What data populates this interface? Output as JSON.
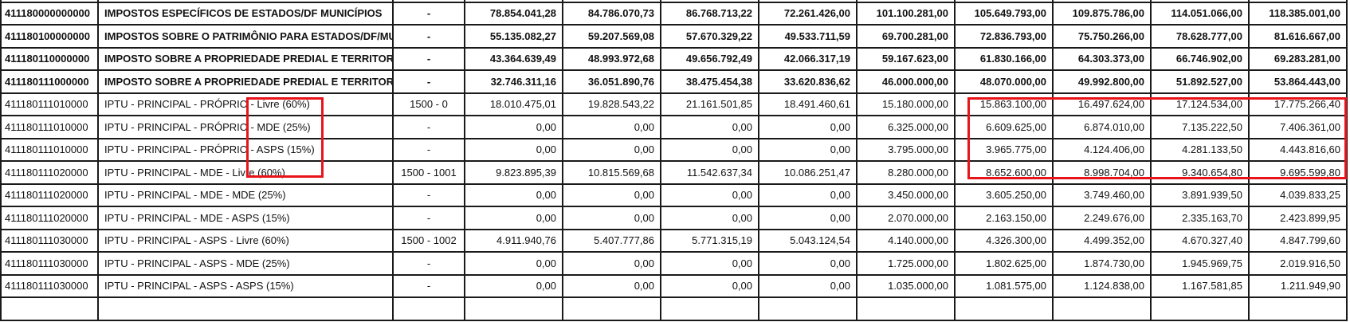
{
  "rows": [
    {
      "style": "bold",
      "code": "411180000000000",
      "description": "IMPOSTOS ESPECÍFICOS DE ESTADOS/DF MUNICÍPIOS",
      "fonte": "-",
      "values": [
        "78.854.041,28",
        "84.786.070,73",
        "86.768.713,22",
        "72.261.426,00",
        "101.100.281,00",
        "105.649.793,00",
        "109.875.786,00",
        "114.051.066,00",
        "118.385.001,00"
      ]
    },
    {
      "style": "bold",
      "code": "411180100000000",
      "description": "IMPOSTOS SOBRE O PATRIMÔNIO PARA ESTADOS/DF/MUNICÍPIOS",
      "fonte": "-",
      "values": [
        "55.135.082,27",
        "59.207.569,08",
        "57.670.329,22",
        "49.533.711,59",
        "69.700.281,00",
        "72.836.793,00",
        "75.750.266,00",
        "78.628.777,00",
        "81.616.667,00"
      ]
    },
    {
      "style": "bold",
      "code": "411180110000000",
      "description": "IMPOSTO SOBRE A PROPRIEDADE PREDIAL E TERRITORIAL",
      "fonte": "-",
      "values": [
        "43.364.639,49",
        "48.993.972,68",
        "49.656.792,49",
        "42.066.317,19",
        "59.167.623,00",
        "61.830.166,00",
        "64.303.373,00",
        "66.746.902,00",
        "69.283.281,00"
      ]
    },
    {
      "style": "bold",
      "code": "411180111000000",
      "description": "IMPOSTO SOBRE A PROPRIEDADE PREDIAL E TERRITORIAL",
      "fonte": "-",
      "values": [
        "32.746.311,16",
        "36.051.890,76",
        "38.475.454,38",
        "33.620.836,62",
        "46.000.000,00",
        "48.070.000,00",
        "49.992.800,00",
        "51.892.527,00",
        "53.864.443,00"
      ]
    },
    {
      "style": "normal",
      "code": "411180111010000",
      "description": "IPTU - PRINCIPAL - PRÓPRIO - Livre (60%)",
      "fonte": "1500 - 0",
      "values": [
        "18.010.475,01",
        "19.828.543,22",
        "21.161.501,85",
        "18.491.460,61",
        "15.180.000,00",
        "15.863.100,00",
        "16.497.624,00",
        "17.124.534,00",
        "17.775.266,40"
      ]
    },
    {
      "style": "normal",
      "code": "411180111010000",
      "description": "IPTU - PRINCIPAL - PRÓPRIO - MDE (25%)",
      "fonte": "-",
      "values": [
        "0,00",
        "0,00",
        "0,00",
        "0,00",
        "6.325.000,00",
        "6.609.625,00",
        "6.874.010,00",
        "7.135.222,50",
        "7.406.361,00"
      ]
    },
    {
      "style": "normal",
      "code": "411180111010000",
      "description": "IPTU - PRINCIPAL - PRÓPRIO - ASPS (15%)",
      "fonte": "-",
      "values": [
        "0,00",
        "0,00",
        "0,00",
        "0,00",
        "3.795.000,00",
        "3.965.775,00",
        "4.124.406,00",
        "4.281.133,50",
        "4.443.816,60"
      ]
    },
    {
      "style": "normal",
      "code": "411180111020000",
      "description": "IPTU - PRINCIPAL - MDE - Livre (60%)",
      "fonte": "1500 - 1001",
      "values": [
        "9.823.895,39",
        "10.815.569,68",
        "11.542.637,34",
        "10.086.251,47",
        "8.280.000,00",
        "8.652.600,00",
        "8.998.704,00",
        "9.340.654,80",
        "9.695.599,80"
      ]
    },
    {
      "style": "normal",
      "code": "411180111020000",
      "description": "IPTU - PRINCIPAL - MDE - MDE (25%)",
      "fonte": "-",
      "values": [
        "0,00",
        "0,00",
        "0,00",
        "0,00",
        "3.450.000,00",
        "3.605.250,00",
        "3.749.460,00",
        "3.891.939,50",
        "4.039.833,25"
      ]
    },
    {
      "style": "normal",
      "code": "411180111020000",
      "description": "IPTU - PRINCIPAL - MDE - ASPS (15%)",
      "fonte": "-",
      "values": [
        "0,00",
        "0,00",
        "0,00",
        "0,00",
        "2.070.000,00",
        "2.163.150,00",
        "2.249.676,00",
        "2.335.163,70",
        "2.423.899,95"
      ]
    },
    {
      "style": "normal",
      "code": "411180111030000",
      "description": "IPTU - PRINCIPAL - ASPS - Livre (60%)",
      "fonte": "1500 - 1002",
      "values": [
        "4.911.940,76",
        "5.407.777,86",
        "5.771.315,19",
        "5.043.124,54",
        "4.140.000,00",
        "4.326.300,00",
        "4.499.352,00",
        "4.670.327,40",
        "4.847.799,60"
      ]
    },
    {
      "style": "normal",
      "code": "411180111030000",
      "description": "IPTU - PRINCIPAL - ASPS - MDE (25%)",
      "fonte": "-",
      "values": [
        "0,00",
        "0,00",
        "0,00",
        "0,00",
        "1.725.000,00",
        "1.802.625,00",
        "1.874.730,00",
        "1.945.969,75",
        "2.019.916,50"
      ]
    },
    {
      "style": "normal",
      "code": "411180111030000",
      "description": "IPTU - PRINCIPAL - ASPS - ASPS (15%)",
      "fonte": "-",
      "values": [
        "0,00",
        "0,00",
        "0,00",
        "0,00",
        "1.035.000,00",
        "1.081.575,00",
        "1.124.838,00",
        "1.167.581,85",
        "1.211.949,90"
      ]
    }
  ],
  "highlight_color": "#e8141b"
}
